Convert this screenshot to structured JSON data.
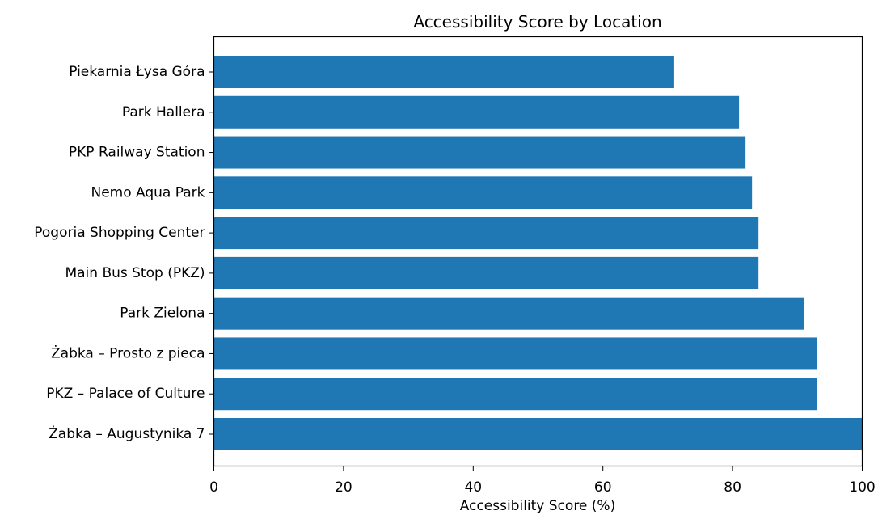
{
  "chart_data": {
    "type": "bar",
    "orientation": "horizontal",
    "title": "Accessibility Score by Location",
    "xlabel": "Accessibility Score (%)",
    "ylabel": "",
    "xlim": [
      0,
      100
    ],
    "xticks": [
      0,
      20,
      40,
      60,
      80,
      100
    ],
    "grid": false,
    "bar_color": "#1f77b4",
    "categories": [
      "Piekarnia Łysa Góra",
      "Park Hallera",
      "PKP Railway Station",
      "Nemo Aqua Park",
      "Pogoria Shopping Center",
      "Main Bus Stop (PKZ)",
      "Park Zielona",
      "Żabka – Prosto z pieca",
      "PKZ – Palace of Culture",
      "Żabka – Augustynika 7"
    ],
    "values": [
      71,
      81,
      82,
      83,
      84,
      84,
      91,
      93,
      93,
      100
    ]
  }
}
